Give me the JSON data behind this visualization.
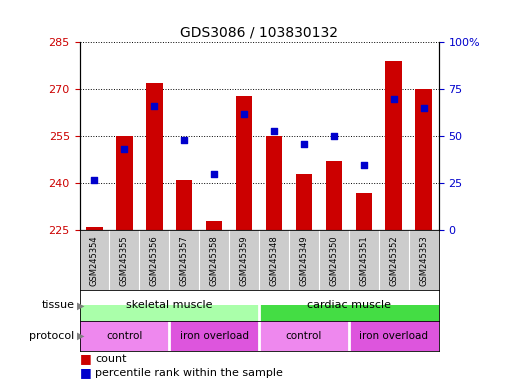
{
  "title": "GDS3086 / 103830132",
  "samples": [
    "GSM245354",
    "GSM245355",
    "GSM245356",
    "GSM245357",
    "GSM245358",
    "GSM245359",
    "GSM245348",
    "GSM245349",
    "GSM245350",
    "GSM245351",
    "GSM245352",
    "GSM245353"
  ],
  "bar_values": [
    226,
    255,
    272,
    241,
    228,
    268,
    255,
    243,
    247,
    237,
    279,
    270
  ],
  "percentile_values": [
    27,
    43,
    66,
    48,
    30,
    62,
    53,
    46,
    50,
    35,
    70,
    65
  ],
  "ylim_left": [
    225,
    285
  ],
  "ylim_right": [
    0,
    100
  ],
  "yticks_left": [
    225,
    240,
    255,
    270,
    285
  ],
  "yticks_right": [
    0,
    25,
    50,
    75,
    100
  ],
  "bar_color": "#cc0000",
  "dot_color": "#0000cc",
  "tissue_labels": [
    "skeletal muscle",
    "cardiac muscle"
  ],
  "tissue_color_left": "#aaffaa",
  "tissue_color_right": "#44dd44",
  "protocol_colors": [
    "#ee88ee",
    "#dd55dd",
    "#ee88ee",
    "#dd55dd"
  ],
  "protocol_labels": [
    "control",
    "iron overload",
    "control",
    "iron overload"
  ],
  "protocol_ranges": [
    [
      0,
      3
    ],
    [
      3,
      6
    ],
    [
      6,
      9
    ],
    [
      9,
      12
    ]
  ],
  "legend_count_label": "count",
  "legend_percentile_label": "percentile rank within the sample",
  "tick_label_color_left": "#cc0000",
  "tick_label_color_right": "#0000cc",
  "label_bg_color": "#cccccc"
}
